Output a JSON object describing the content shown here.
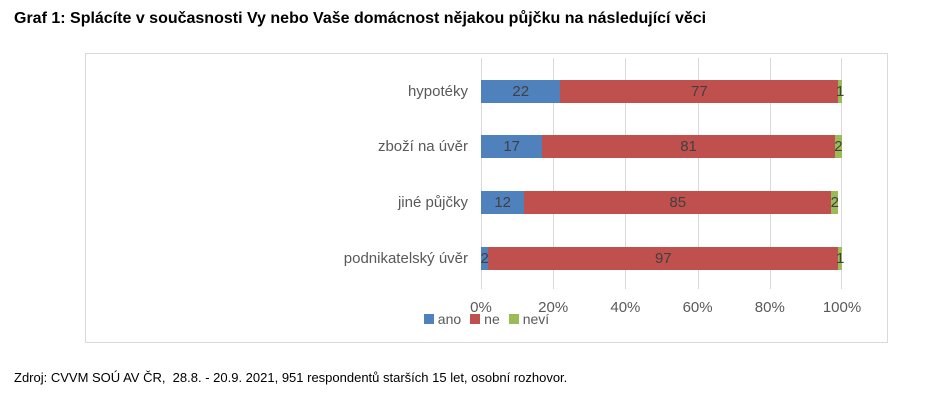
{
  "page": {
    "title": "Graf 1: Splácíte v současnosti Vy nebo Vaše domácnost nějakou půjčku na následující věci",
    "source": "Zdroj: CVVM SOÚ AV ČR,  28.8. - 20.9. 2021, 951 respondentů starších 15 let, osobní rozhovor."
  },
  "chart_data": {
    "type": "bar",
    "orientation": "horizontal",
    "stacked": true,
    "unit": "%",
    "categories": [
      "hypotéky",
      "zboží na úvěr",
      "jiné půjčky",
      "podnikatelský úvěr"
    ],
    "series": [
      {
        "name": "ano",
        "color": "#4F81BD",
        "values": [
          22,
          17,
          12,
          2
        ]
      },
      {
        "name": "ne",
        "color": "#C0504D",
        "values": [
          77,
          81,
          85,
          97
        ]
      },
      {
        "name": "neví",
        "color": "#9BBB59",
        "values": [
          1,
          2,
          2,
          1
        ]
      }
    ],
    "x_ticks": [
      "0%",
      "20%",
      "40%",
      "60%",
      "80%",
      "100%"
    ],
    "xlim": [
      0,
      100
    ],
    "grid": true,
    "legend_position": "bottom-center",
    "colors": {
      "grid": "#D9D9D9",
      "frame_border": "#D9D9D9",
      "value_label": "#404040",
      "axis_label": "#595959",
      "category_label": "#595959"
    }
  }
}
